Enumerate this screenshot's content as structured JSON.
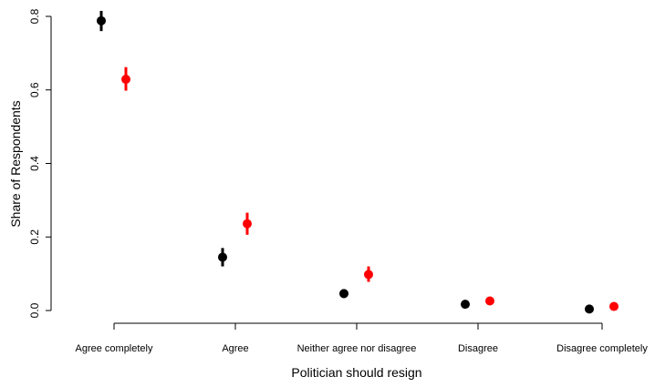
{
  "chart_data": {
    "type": "scatter",
    "title": "",
    "xlabel": "Politician should resign",
    "ylabel": "Share of Respondents",
    "ylim": [
      0,
      0.8
    ],
    "yticks": [
      0.0,
      0.2,
      0.4,
      0.6,
      0.8
    ],
    "ytick_labels": [
      "0.0",
      "0.2",
      "0.4",
      "0.6",
      "0.8"
    ],
    "categories": [
      "Agree completely",
      "Agree",
      "Neither agree nor disagree",
      "Disagree",
      "Disagree completely"
    ],
    "grid": false,
    "legend": "none",
    "series": [
      {
        "color": "#000000",
        "values": [
          0.788,
          0.145,
          0.046,
          0.017,
          0.004
        ],
        "lower": [
          0.76,
          0.12,
          0.034,
          0.011,
          0.001
        ],
        "upper": [
          0.815,
          0.17,
          0.058,
          0.023,
          0.007
        ]
      },
      {
        "color": "#ff0000",
        "values": [
          0.629,
          0.236,
          0.098,
          0.026,
          0.011
        ],
        "lower": [
          0.598,
          0.206,
          0.078,
          0.018,
          0.006
        ],
        "upper": [
          0.662,
          0.266,
          0.12,
          0.034,
          0.016
        ]
      }
    ]
  }
}
